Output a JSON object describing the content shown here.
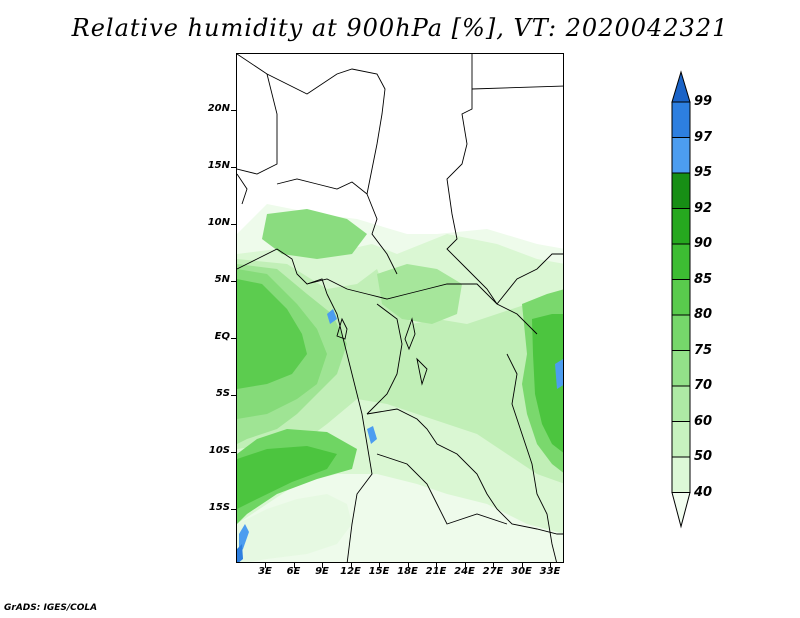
{
  "title": "Relative humidity at 900hPa [%], VT: 2020042321",
  "credit": "GrADS: IGES/COLA",
  "map": {
    "lat_ticks": [
      "20N",
      "15N",
      "10N",
      "5N",
      "EQ",
      "5S",
      "10S",
      "15S"
    ],
    "lon_ticks": [
      "3E",
      "6E",
      "9E",
      "12E",
      "15E",
      "18E",
      "21E",
      "24E",
      "27E",
      "30E",
      "33E"
    ]
  },
  "colorbar": {
    "levels": [
      "40",
      "50",
      "60",
      "70",
      "75",
      "80",
      "85",
      "90",
      "92",
      "95",
      "97",
      "99"
    ],
    "colors": [
      "#f2fdf0",
      "#ddf8d7",
      "#c7f2bf",
      "#aeeaa5",
      "#93e189",
      "#76d76b",
      "#59cb4d",
      "#3dbd33",
      "#26a81f",
      "#178e15",
      "#4c9df0",
      "#2d7fe0",
      "#1a63c7"
    ]
  }
}
